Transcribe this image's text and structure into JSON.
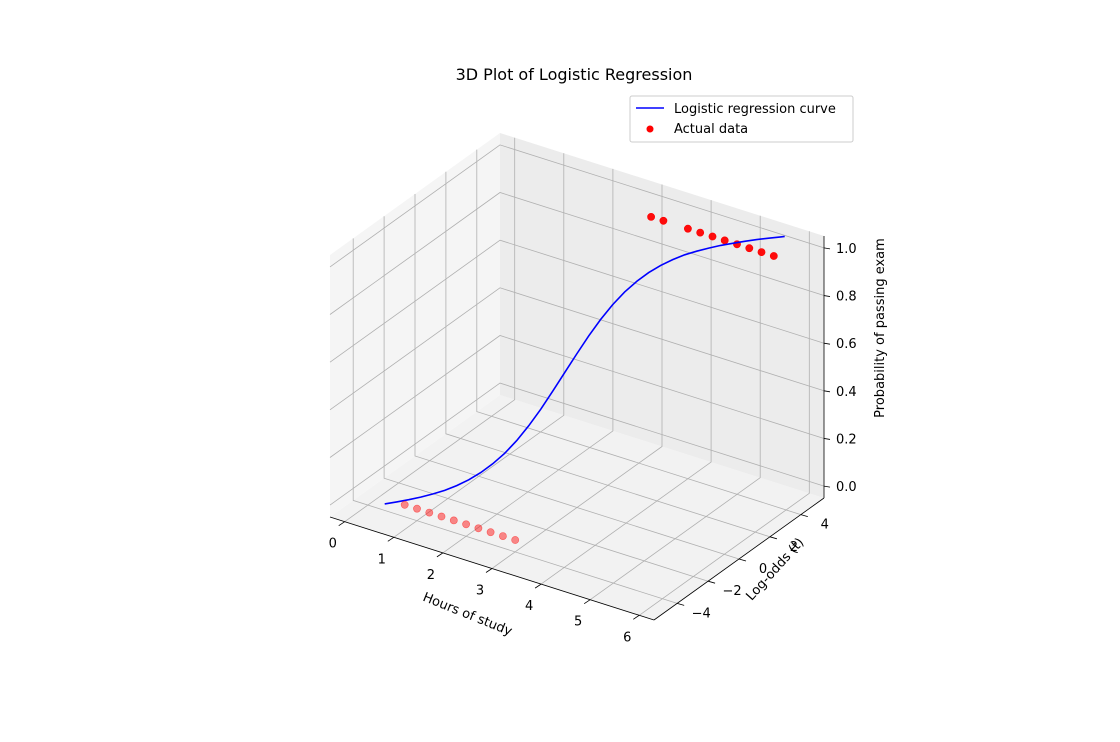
{
  "chart_data": {
    "type": "3d-line-scatter",
    "title": "3D Plot of Logistic Regression",
    "xlabel": "Hours of study",
    "ylabel": "Log-odds (t)",
    "zlabel": "Probability of passing exam",
    "xticks": [
      "0",
      "1",
      "2",
      "3",
      "4",
      "5",
      "6"
    ],
    "yticks": [
      "−4",
      "−2",
      "0",
      "2",
      "4"
    ],
    "zticks": [
      "0.0",
      "0.2",
      "0.4",
      "0.6",
      "0.8",
      "1.0"
    ],
    "xlim": [
      -0.3,
      6.3
    ],
    "ylim": [
      -5.5,
      5.5
    ],
    "zlim": [
      -0.05,
      1.05
    ],
    "grid": true,
    "legend_position": "top-right",
    "colors": {
      "curve": "#0000ff",
      "points": "#ff0000"
    },
    "series": [
      {
        "name": "Logistic regression curve",
        "kind": "line",
        "x": [
          0.5,
          0.65,
          0.8,
          0.95,
          1.1,
          1.25,
          1.4,
          1.55,
          1.7,
          1.85,
          2.0,
          2.15,
          2.3,
          2.45,
          2.6,
          2.75,
          2.9,
          3.05,
          3.2,
          3.35,
          3.5,
          3.65,
          3.8,
          3.95,
          4.1,
          4.25,
          4.4,
          4.55,
          4.7,
          4.85,
          5.0,
          5.15,
          5.3,
          5.45,
          5.5
        ],
        "y": [
          -4.5,
          -4.2,
          -3.9,
          -3.6,
          -3.3,
          -3.0,
          -2.7,
          -2.4,
          -2.1,
          -1.8,
          -1.5,
          -1.2,
          -0.9,
          -0.6,
          -0.3,
          0.0,
          0.3,
          0.6,
          0.9,
          1.2,
          1.5,
          1.8,
          2.1,
          2.4,
          2.7,
          3.0,
          3.3,
          3.6,
          3.9,
          4.2,
          4.5,
          4.8,
          5.1,
          5.4,
          5.5
        ],
        "z": [
          0.011,
          0.015,
          0.02,
          0.027,
          0.036,
          0.047,
          0.063,
          0.083,
          0.109,
          0.142,
          0.182,
          0.231,
          0.289,
          0.354,
          0.426,
          0.5,
          0.574,
          0.646,
          0.711,
          0.769,
          0.818,
          0.858,
          0.891,
          0.917,
          0.937,
          0.953,
          0.964,
          0.973,
          0.98,
          0.985,
          0.989,
          0.992,
          0.994,
          0.995,
          0.996
        ]
      },
      {
        "name": "Actual data",
        "kind": "scatter",
        "x": [
          0.75,
          1.0,
          1.25,
          1.5,
          1.75,
          2.0,
          2.25,
          2.5,
          2.75,
          3.0,
          3.25,
          3.5,
          4.0,
          4.25,
          4.5,
          4.75,
          5.0,
          5.25,
          5.5,
          5.75
        ],
        "y": [
          -4.0,
          -4.0,
          -4.0,
          -4.0,
          -4.0,
          -4.0,
          -4.0,
          -4.0,
          -4.0,
          -4.0,
          4.0,
          4.0,
          4.0,
          4.0,
          4.0,
          4.0,
          4.0,
          4.0,
          4.0,
          4.0
        ],
        "z": [
          0,
          0,
          0,
          0,
          0,
          0,
          0,
          0,
          0,
          0,
          1,
          1,
          1,
          1,
          1,
          1,
          1,
          1,
          1,
          1
        ]
      }
    ]
  }
}
